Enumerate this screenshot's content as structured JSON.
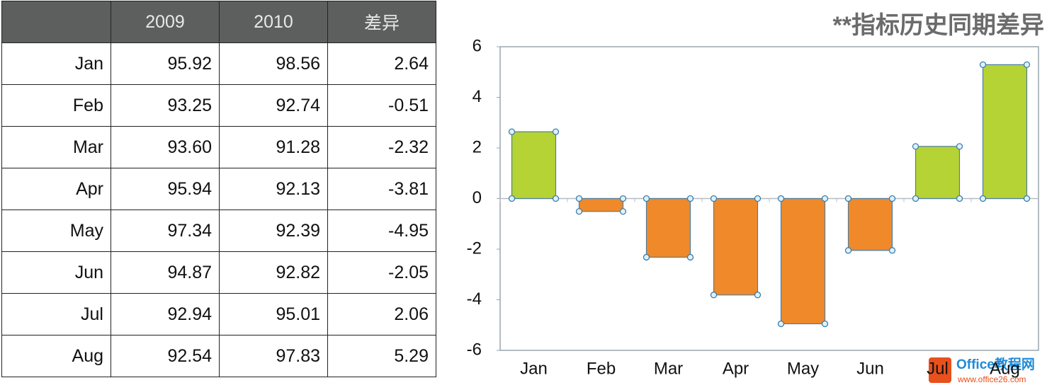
{
  "table": {
    "columns": [
      "2009",
      "2010",
      "差异"
    ],
    "rows": [
      [
        "Jan",
        "95.92",
        "98.56",
        "2.64"
      ],
      [
        "Feb",
        "93.25",
        "92.74",
        "-0.51"
      ],
      [
        "Mar",
        "93.60",
        "91.28",
        "-2.32"
      ],
      [
        "Apr",
        "95.94",
        "92.13",
        "-3.81"
      ],
      [
        "May",
        "97.34",
        "92.39",
        "-4.95"
      ],
      [
        "Jun",
        "94.87",
        "92.82",
        "-2.05"
      ],
      [
        "Jul",
        "92.94",
        "95.01",
        "2.06"
      ],
      [
        "Aug",
        "92.54",
        "97.83",
        "5.29"
      ]
    ]
  },
  "chart_data": {
    "type": "bar",
    "title": "**指标历史同期差异",
    "categories": [
      "Jan",
      "Feb",
      "Mar",
      "Apr",
      "May",
      "Jun",
      "Jul",
      "Aug"
    ],
    "values": [
      2.64,
      -0.51,
      -2.32,
      -3.81,
      -4.95,
      -2.05,
      2.06,
      5.29
    ],
    "colors": {
      "positive": "#b5d334",
      "negative": "#f0892a"
    },
    "ylim": [
      -6,
      6
    ],
    "yticks": [
      -6,
      -4,
      -2,
      0,
      2,
      4,
      6
    ]
  },
  "watermark": {
    "name": "Office教程网",
    "url": "www.office26.com"
  }
}
